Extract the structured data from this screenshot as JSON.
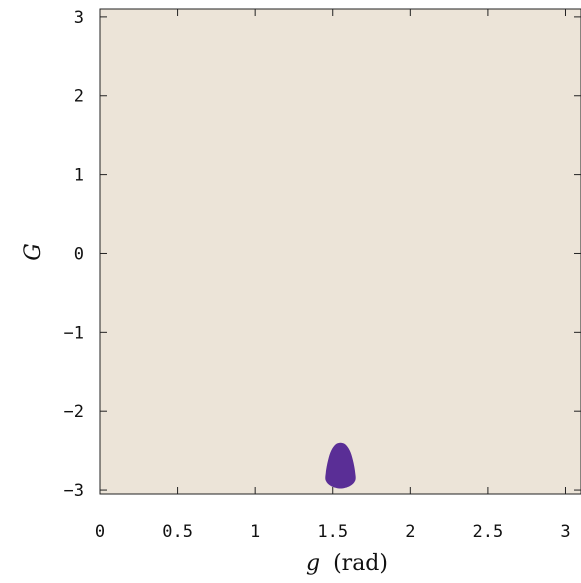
{
  "chart_data": {
    "type": "heatmap",
    "title": "",
    "xlabel_var": "g",
    "xlabel_unit": "(rad)",
    "ylabel": "G",
    "xlim": [
      0,
      3.1
    ],
    "ylim": [
      -3.05,
      3.1
    ],
    "x_ticks": [
      0,
      0.5,
      1,
      1.5,
      2,
      2.5,
      3
    ],
    "x_tick_labels": [
      "0",
      "0.5",
      "1",
      "1.5",
      "2",
      "2.5",
      "3"
    ],
    "y_ticks": [
      -3,
      -2,
      -1,
      0,
      1,
      2,
      3
    ],
    "y_tick_labels": [
      "−3",
      "−2",
      "−1",
      "0",
      "1",
      "2",
      "3"
    ],
    "grid": false,
    "legend": "none",
    "background_color": "#ece4d8",
    "region_color": "#5a2e96",
    "region": {
      "description_points": [
        [
          1.55,
          -2.4
        ],
        [
          1.58,
          -2.42
        ],
        [
          1.61,
          -2.5
        ],
        [
          1.63,
          -2.62
        ],
        [
          1.645,
          -2.78
        ],
        [
          1.645,
          -2.88
        ],
        [
          1.61,
          -2.95
        ],
        [
          1.55,
          -2.98
        ],
        [
          1.49,
          -2.95
        ],
        [
          1.455,
          -2.88
        ],
        [
          1.455,
          -2.78
        ],
        [
          1.47,
          -2.62
        ],
        [
          1.49,
          -2.5
        ],
        [
          1.52,
          -2.42
        ]
      ]
    }
  }
}
